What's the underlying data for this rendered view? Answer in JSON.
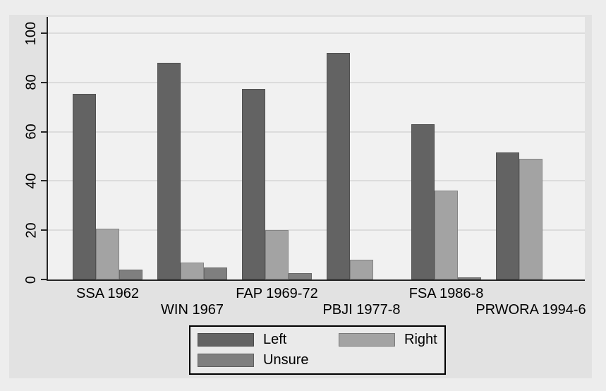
{
  "chart_data": {
    "type": "bar",
    "title": "",
    "xlabel": "",
    "ylabel": "",
    "categories": [
      "SSA 1962",
      "WIN 1967",
      "FAP 1969-72",
      "PBJI 1977-8",
      "FSA 1986-8",
      "PRWORA 1994-6"
    ],
    "series": [
      {
        "name": "Left",
        "color": "#636363",
        "values": [
          75.5,
          88,
          77.5,
          92,
          63,
          51.5
        ]
      },
      {
        "name": "Right",
        "color": "#a3a3a3",
        "values": [
          20.5,
          7,
          20,
          8,
          36,
          49
        ]
      },
      {
        "name": "Unsure",
        "color": "#7f7f7f",
        "values": [
          4,
          5,
          2.5,
          0,
          1,
          0
        ]
      }
    ],
    "ylim": [
      0,
      100
    ],
    "yticks": [
      0,
      20,
      40,
      60,
      80,
      100
    ],
    "grid": "horizontal",
    "legend_position": "bottom-center",
    "x_label_rows": "alternating"
  },
  "colors": {
    "page_bg": "#ededed",
    "figure_bg": "#e2e2e2",
    "plot_bg": "#f1f1f1",
    "gridline": "#dcdcdc",
    "axis": "#262626",
    "text": "#000000"
  }
}
